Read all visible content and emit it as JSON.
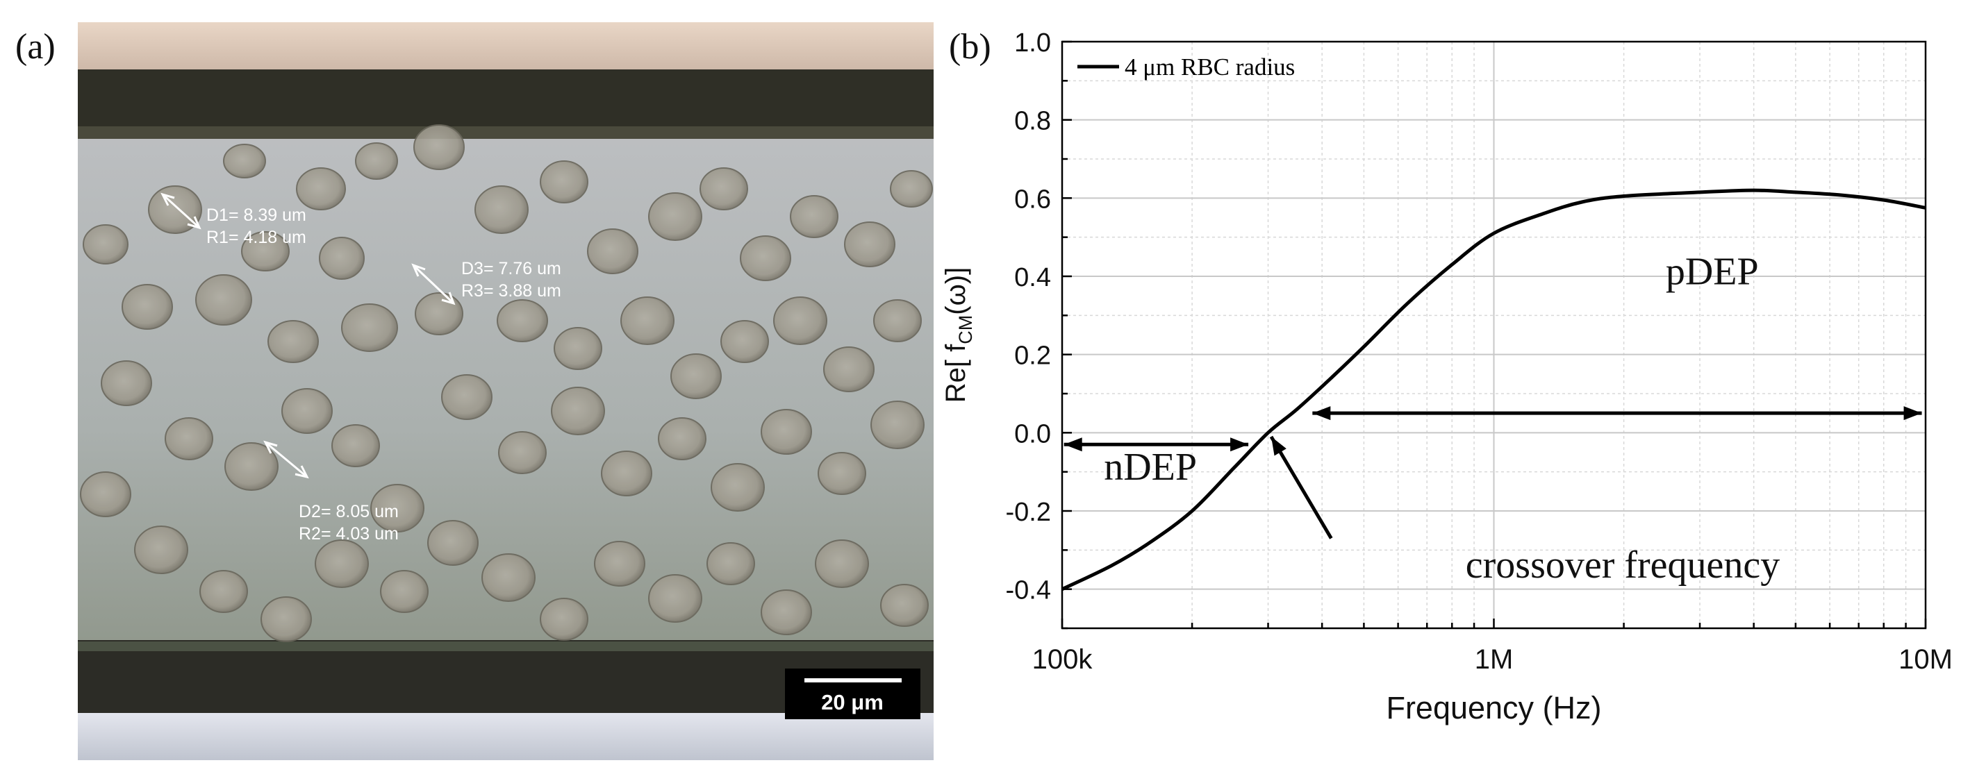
{
  "panel_a": {
    "label": "(a)",
    "measurements": [
      {
        "d": "D1= 8.39 um",
        "r": "R1= 4.18 um"
      },
      {
        "d": "D3= 7.76 um",
        "r": "R3= 3.88 um"
      },
      {
        "d": "D2= 8.05 um",
        "r": "R2= 4.03 um"
      }
    ],
    "scale_bar": "20 μm"
  },
  "panel_b": {
    "label": "(b)"
  },
  "chart_data": {
    "type": "line",
    "xscale": "log",
    "xlim": [
      100000,
      10000000
    ],
    "ylim": [
      -0.5,
      1.0
    ],
    "xlabel": "Frequency (Hz)",
    "ylabel": "Re[ f",
    "ylabel_sub": "CM",
    "ylabel_tail": "(ω)]",
    "xticks": [
      {
        "v": 100000,
        "label": "100k"
      },
      {
        "v": 1000000,
        "label": "1M"
      },
      {
        "v": 10000000,
        "label": "10M"
      }
    ],
    "yticks": [
      {
        "v": 1.0,
        "label": "1.0"
      },
      {
        "v": 0.8,
        "label": "0.8"
      },
      {
        "v": 0.6,
        "label": "0.6"
      },
      {
        "v": 0.4,
        "label": "0.4"
      },
      {
        "v": 0.2,
        "label": "0.2"
      },
      {
        "v": 0.0,
        "label": "0.0"
      },
      {
        "v": -0.2,
        "label": "-0.2"
      },
      {
        "v": -0.4,
        "label": "-0.4"
      }
    ],
    "grid": true,
    "legend_position": "top-left",
    "series": [
      {
        "name": "4 μm RBC radius",
        "color": "#000000",
        "points": [
          [
            100000,
            -0.4
          ],
          [
            130000,
            -0.34
          ],
          [
            160000,
            -0.28
          ],
          [
            200000,
            -0.2
          ],
          [
            250000,
            -0.09
          ],
          [
            300000,
            0.0
          ],
          [
            350000,
            0.06
          ],
          [
            420000,
            0.14
          ],
          [
            500000,
            0.22
          ],
          [
            630000,
            0.33
          ],
          [
            800000,
            0.43
          ],
          [
            1000000,
            0.51
          ],
          [
            1300000,
            0.56
          ],
          [
            1600000,
            0.59
          ],
          [
            2000000,
            0.605
          ],
          [
            3000000,
            0.615
          ],
          [
            4000000,
            0.62
          ],
          [
            5000000,
            0.615
          ],
          [
            6300000,
            0.608
          ],
          [
            8000000,
            0.595
          ],
          [
            10000000,
            0.575
          ]
        ]
      }
    ],
    "annotations": [
      {
        "text": "pDEP",
        "x": 2500000,
        "y": 0.38
      },
      {
        "text": "nDEP",
        "x": 125000,
        "y": -0.12
      },
      {
        "text": "crossover frequency",
        "x": 860000,
        "y": -0.37
      }
    ],
    "arrows": [
      {
        "type": "double",
        "from": [
          101000,
          -0.03
        ],
        "to": [
          270000,
          -0.03
        ]
      },
      {
        "type": "double",
        "from": [
          380000,
          0.05
        ],
        "to": [
          9800000,
          0.05
        ]
      },
      {
        "type": "single",
        "from": [
          420000,
          -0.27
        ],
        "to": [
          305000,
          -0.01
        ]
      }
    ]
  }
}
